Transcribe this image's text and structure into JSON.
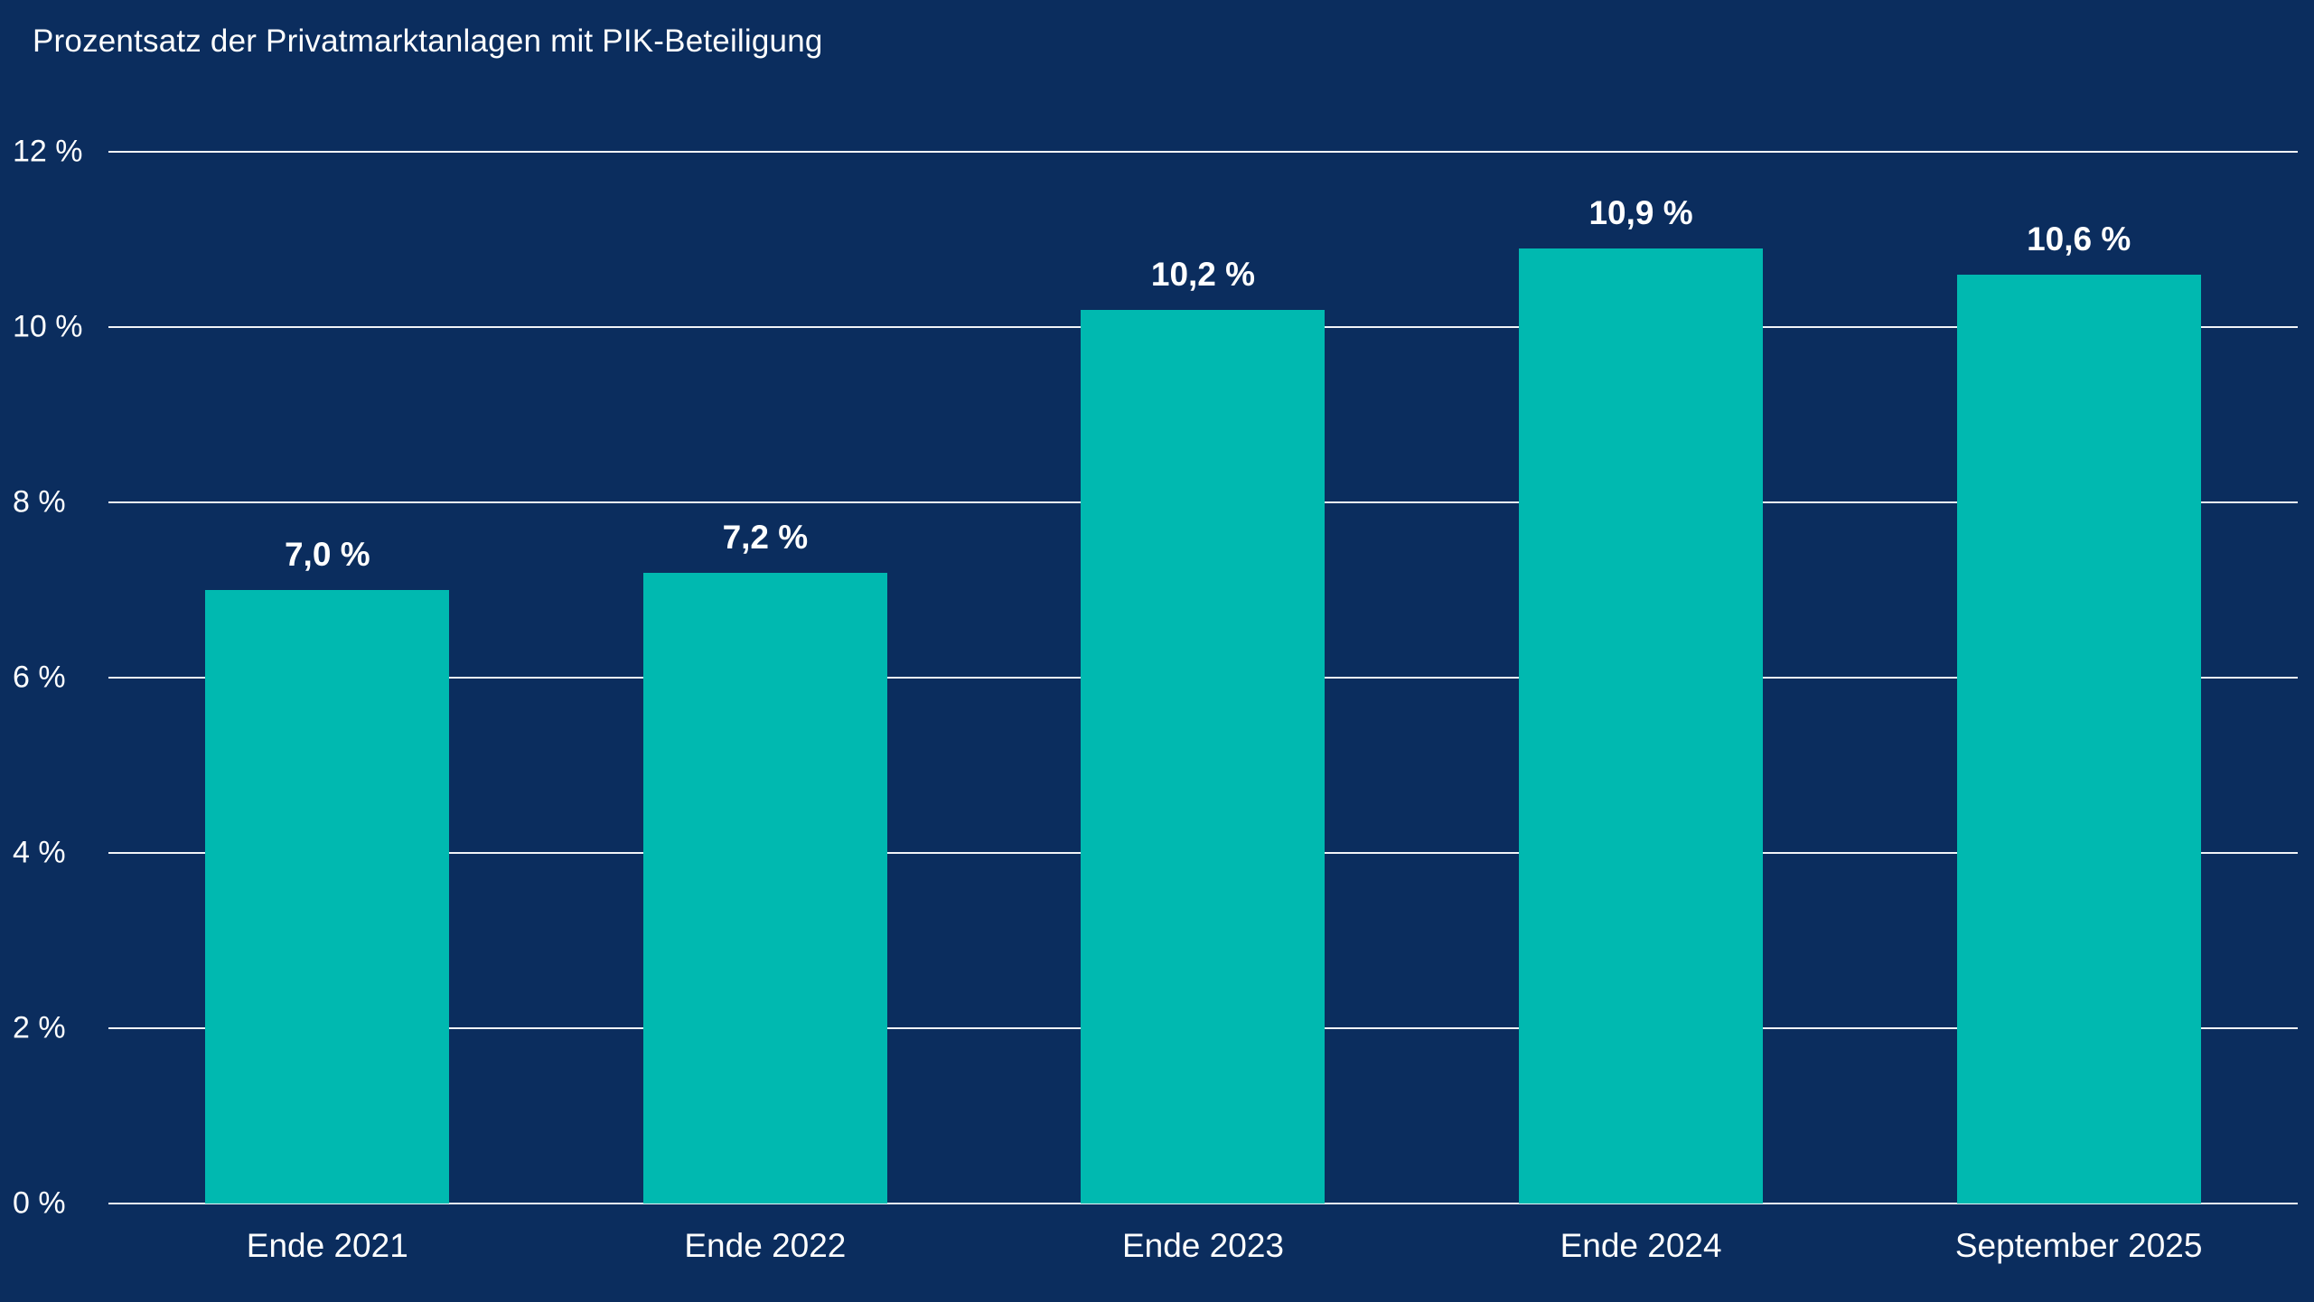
{
  "title": "Prozentsatz der Privatmarktanlagen mit PIK-Beteiligung",
  "chart_data": {
    "type": "bar",
    "title": "Prozentsatz der Privatmarktanlagen mit PIK-Beteiligung",
    "categories": [
      "Ende 2021",
      "Ende 2022",
      "Ende 2023",
      "Ende 2024",
      "September 2025"
    ],
    "values": [
      7.0,
      7.2,
      10.2,
      10.9,
      10.6
    ],
    "value_labels": [
      "7,0 %",
      "7,2 %",
      "10,2 %",
      "10,9 %",
      "10,6 %"
    ],
    "xlabel": "",
    "ylabel": "",
    "ylim": [
      0,
      12
    ],
    "y_ticks": [
      {
        "value": 0,
        "label": "0 %"
      },
      {
        "value": 2,
        "label": "2 %"
      },
      {
        "value": 4,
        "label": "4 %"
      },
      {
        "value": 6,
        "label": "6 %"
      },
      {
        "value": 8,
        "label": "8 %"
      },
      {
        "value": 10,
        "label": "10 %"
      },
      {
        "value": 12,
        "label": "12 %"
      }
    ],
    "grid": true,
    "legend": "none",
    "colors": {
      "background": "#0b2d5e",
      "bar": "#00b9b0",
      "text": "#ffffff",
      "gridline": "#ffffff"
    }
  }
}
